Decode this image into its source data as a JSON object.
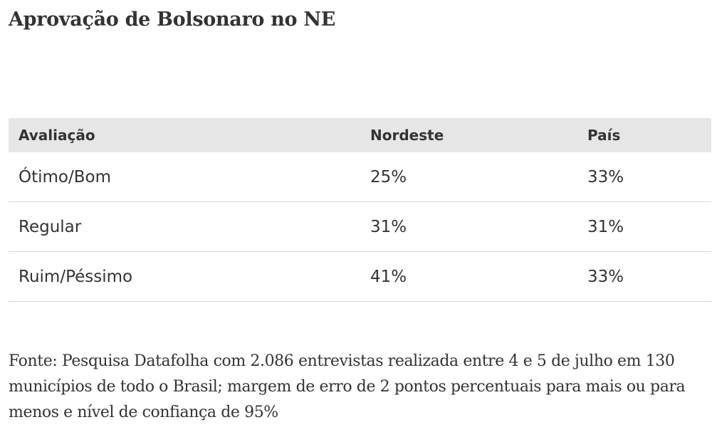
{
  "title": "Aprovação de Bolsonaro no NE",
  "source": "Fonte: Pesquisa Datafolha com 2.086 entrevistas realizada entre 4 e 5 de julho em 130 municípios de todo o Brasil; margem de erro de 2 pontos percentuais para mais ou para menos e nível de confiança de 95%",
  "chart_data": {
    "type": "table",
    "title": "Aprovação de Bolsonaro no NE",
    "columns": [
      "Avaliação",
      "Nordeste",
      "País"
    ],
    "rows": [
      [
        "Ótimo/Bom",
        "25%",
        "33%"
      ],
      [
        "Regular",
        "31%",
        "31%"
      ],
      [
        "Ruim/Péssimo",
        "41%",
        "33%"
      ]
    ],
    "series": [
      {
        "name": "Nordeste",
        "values": [
          25,
          31,
          41
        ]
      },
      {
        "name": "País",
        "values": [
          33,
          31,
          33
        ]
      }
    ],
    "categories": [
      "Ótimo/Bom",
      "Regular",
      "Ruim/Péssimo"
    ],
    "unit": "%"
  }
}
